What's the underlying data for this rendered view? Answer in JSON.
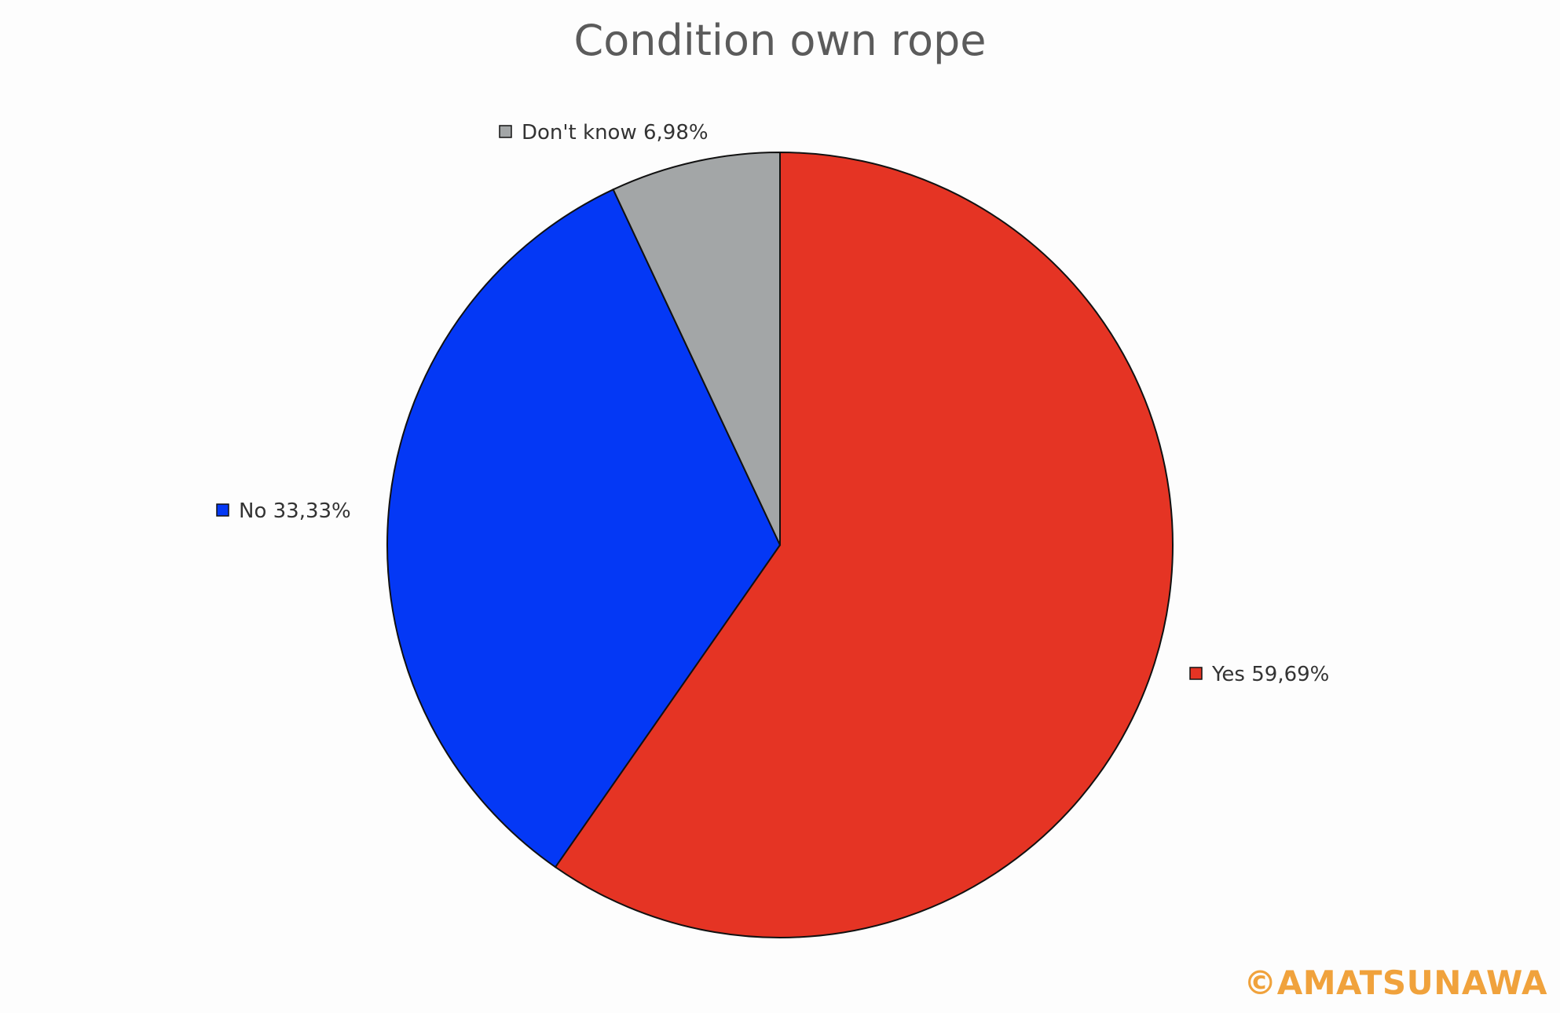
{
  "chart_data": {
    "type": "pie",
    "title": "Condition own rope",
    "slices": [
      {
        "label": "Yes",
        "value": 59.69,
        "display": "Yes 59,69%",
        "color": "#e53424"
      },
      {
        "label": "No",
        "value": 33.33,
        "display": "No 33,33%",
        "color": "#0438f5"
      },
      {
        "label": "Don't know",
        "value": 6.98,
        "display": "Don't know 6,98%",
        "color": "#a3a6a7"
      }
    ],
    "start": "12 o'clock",
    "direction": "clockwise",
    "label_style": "outside-with-swatch"
  },
  "watermark": "©AMATSUNAWA",
  "colors": {
    "title": "#5b5b5b",
    "label": "#333333",
    "outline": "#111111",
    "watermark": "#f0a23c"
  }
}
